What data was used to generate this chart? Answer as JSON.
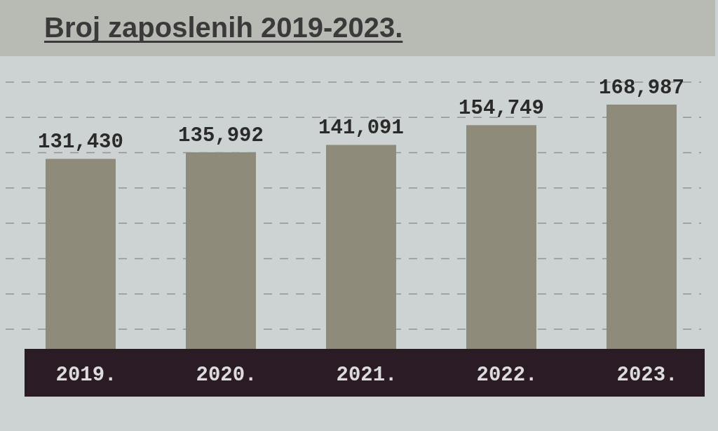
{
  "chart_data": {
    "type": "bar",
    "title": "Broj zaposlenih 2019-2023.",
    "categories": [
      "2019.",
      "2020.",
      "2021.",
      "2022.",
      "2023."
    ],
    "values": [
      131430,
      135992,
      141091,
      154749,
      168987
    ],
    "value_labels": [
      "131,430",
      "135,992",
      "141,091",
      "154,749",
      "168,987"
    ],
    "color": "#8e8b7b",
    "grid": "y"
  }
}
